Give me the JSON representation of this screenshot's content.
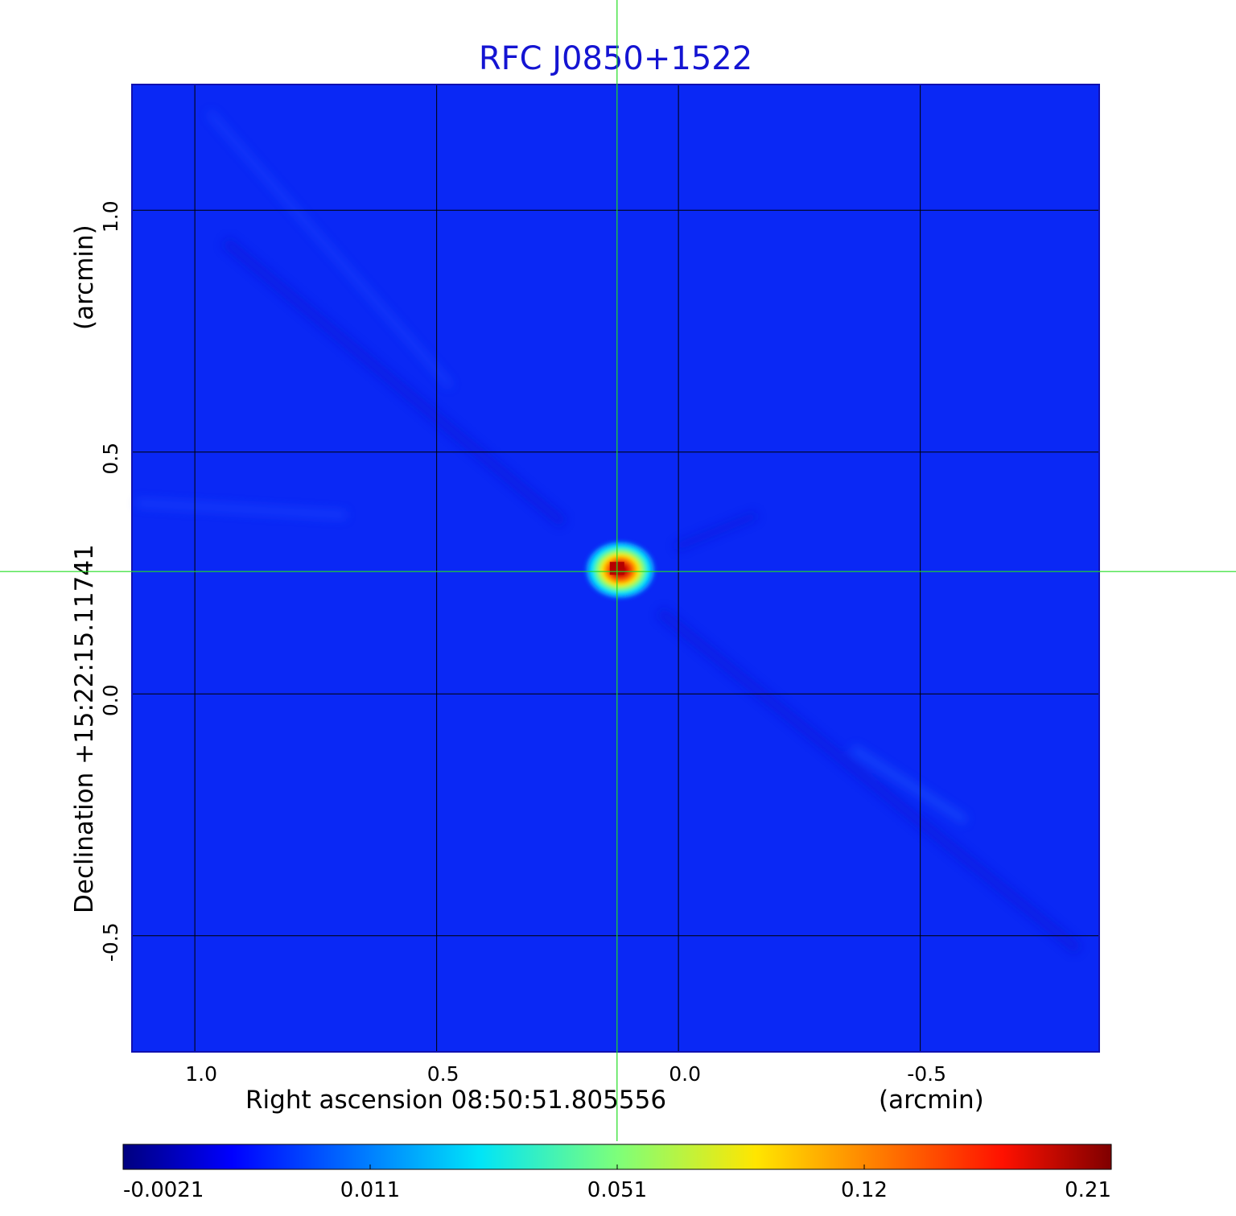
{
  "chart_data": {
    "type": "heatmap",
    "title": "RFC J0850+1522",
    "xlabel": "Right ascension  08:50:51.805556",
    "xunit": "(arcmin)",
    "ylabel": "Declination  +15:22:15.11741",
    "yunit": "(arcmin)",
    "x_ticks": [
      {
        "value": 1.0,
        "label": "1.0"
      },
      {
        "value": 0.5,
        "label": "0.5"
      },
      {
        "value": 0.0,
        "label": "0.0"
      },
      {
        "value": -0.5,
        "label": "-0.5"
      }
    ],
    "y_ticks": [
      {
        "value": 1.0,
        "label": "1.0"
      },
      {
        "value": 0.5,
        "label": "0.5"
      },
      {
        "value": 0.0,
        "label": "0.0"
      },
      {
        "value": -0.5,
        "label": "-0.5"
      }
    ],
    "xlim": [
      1.13,
      -0.87
    ],
    "ylim": [
      -0.74,
      1.26
    ],
    "x_reversed": true,
    "grid": true,
    "crosshair": {
      "x": 0.127,
      "y": 0.253,
      "color": "#22dd22"
    },
    "sources": [
      {
        "x": 0.127,
        "y": 0.253,
        "peak": 0.21
      }
    ],
    "colorbar": {
      "colormap": "jet",
      "ticks": [
        "-0.0021",
        "0.011",
        "0.051",
        "0.12",
        "0.21"
      ],
      "min": -0.0021,
      "max": 0.21,
      "placement": "bottom"
    },
    "colors": {
      "title": "#1414d2",
      "background_map": "#0a28f5",
      "grid": "#000000"
    }
  }
}
